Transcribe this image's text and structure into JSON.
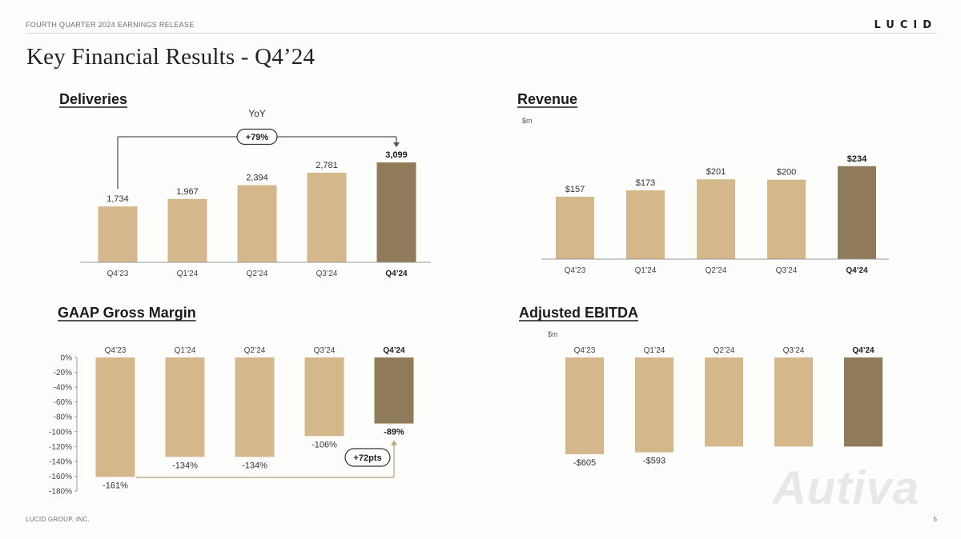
{
  "header": {
    "release_label": "FOURTH QUARTER 2024 EARNINGS RELEASE",
    "logo_text": "LUCID",
    "page_title": "Key Financial Results - Q4’24"
  },
  "footer": {
    "company": "LUCID GROUP, INC.",
    "page_number": "5"
  },
  "watermark": "Autiva",
  "colors": {
    "bar_base": "#d4b88c",
    "bar_highlight": "#8f7a5a",
    "axis": "#999999",
    "bracket": "#555555"
  },
  "chart_data": [
    {
      "id": "deliveries",
      "type": "bar",
      "title": "Deliveries",
      "unit": "",
      "categories": [
        "Q4’23",
        "Q1’24",
        "Q2’24",
        "Q3’24",
        "Q4’24"
      ],
      "values": [
        1734,
        1967,
        2394,
        2781,
        3099
      ],
      "value_labels": [
        "1,734",
        "1,967",
        "2,394",
        "2,781",
        "3,099"
      ],
      "highlight_index": 4,
      "ylim": [
        0,
        3500
      ],
      "annotation": {
        "label": "YoY",
        "pill": "+79%",
        "from_index": 0,
        "to_index": 4
      }
    },
    {
      "id": "revenue",
      "type": "bar",
      "title": "Revenue",
      "unit": "$m",
      "categories": [
        "Q4’23",
        "Q1’24",
        "Q2’24",
        "Q3’24",
        "Q4’24"
      ],
      "values": [
        157,
        173,
        201,
        200,
        234
      ],
      "value_labels": [
        "$157",
        "$173",
        "$201",
        "$200",
        "$234"
      ],
      "highlight_index": 4,
      "ylim": [
        0,
        300
      ]
    },
    {
      "id": "gross_margin",
      "type": "bar",
      "title": "GAAP Gross Margin",
      "unit": "",
      "categories": [
        "Q4’23",
        "Q1’24",
        "Q2’24",
        "Q3’24",
        "Q4’24"
      ],
      "values": [
        -161,
        -134,
        -134,
        -106,
        -89
      ],
      "value_labels": [
        "-161%",
        "-134%",
        "-134%",
        "-106%",
        "-89%"
      ],
      "highlight_index": 4,
      "ylim": [
        -180,
        0
      ],
      "yticks": [
        0,
        -20,
        -40,
        -60,
        -80,
        -100,
        -120,
        -140,
        -160,
        -180
      ],
      "ytick_labels": [
        "0%",
        "-20%",
        "-40%",
        "-60%",
        "-80%",
        "-100%",
        "-120%",
        "-140%",
        "-160%",
        "-180%"
      ],
      "annotation": {
        "pill": "+72pts",
        "from_index": 0,
        "to_index": 4
      }
    },
    {
      "id": "adjusted_ebitda",
      "type": "bar",
      "title": "Adjusted EBITDA",
      "unit": "$m",
      "categories": [
        "Q4’23",
        "Q1’24",
        "Q2’24",
        "Q3’24",
        "Q4’24"
      ],
      "values": [
        -605,
        -593,
        -557,
        -557,
        -557
      ],
      "value_labels": [
        "-$605",
        "-$593",
        "",
        "",
        ""
      ],
      "highlight_index": 4,
      "ylim": [
        -700,
        0
      ]
    }
  ]
}
